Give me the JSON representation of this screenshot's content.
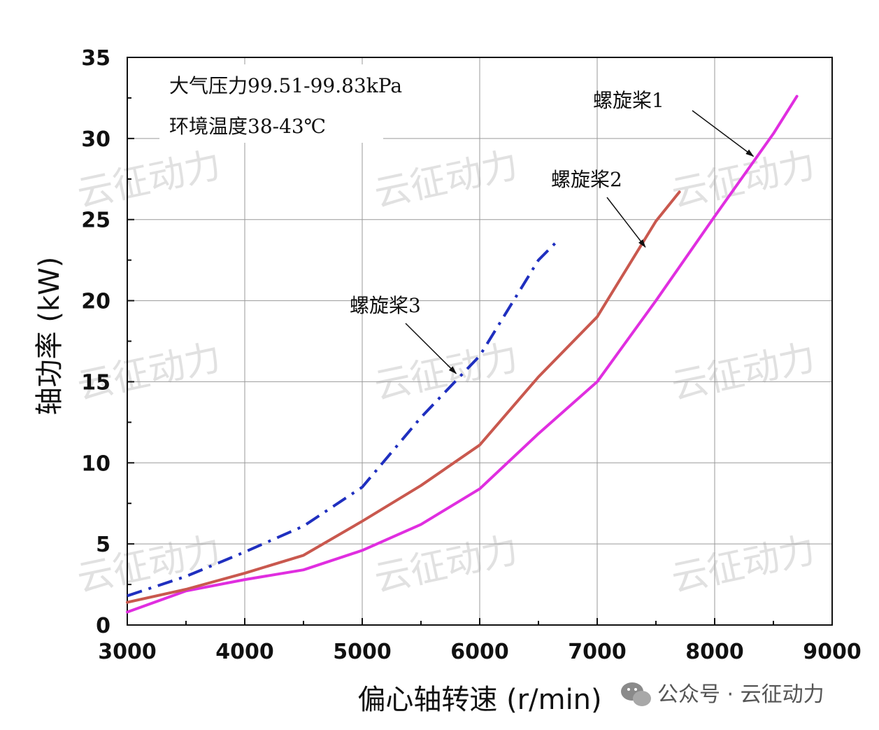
{
  "chart_data": {
    "type": "line",
    "xlabel": "偏心轴转速 (r/min)",
    "ylabel": "轴功率 (kW)",
    "xlim": [
      3000,
      9000
    ],
    "ylim": [
      0,
      35
    ],
    "xticks": [
      3000,
      4000,
      5000,
      6000,
      7000,
      8000,
      9000
    ],
    "yticks": [
      0,
      5,
      10,
      15,
      20,
      25,
      30,
      35
    ],
    "grid": true,
    "annotations": [
      "大气压力99.51-99.83kPa",
      "环境温度38-43℃"
    ],
    "series": [
      {
        "name": "螺旋桨1",
        "color": "#e02ee0",
        "style": "solid",
        "x": [
          3000,
          3500,
          4000,
          4500,
          5000,
          5500,
          6000,
          6500,
          7000,
          7500,
          8000,
          8500,
          8700
        ],
        "y": [
          0.8,
          2.1,
          2.8,
          3.4,
          4.6,
          6.2,
          8.4,
          11.8,
          15.0,
          20.0,
          25.2,
          30.3,
          32.6
        ]
      },
      {
        "name": "螺旋桨2",
        "color": "#c9584e",
        "style": "solid",
        "x": [
          3000,
          3500,
          4000,
          4500,
          5000,
          5500,
          6000,
          6500,
          7000,
          7500,
          7700
        ],
        "y": [
          1.4,
          2.2,
          3.2,
          4.3,
          6.4,
          8.6,
          11.1,
          15.3,
          19.0,
          24.9,
          26.7
        ]
      },
      {
        "name": "螺旋桨3",
        "color": "#1f2fbf",
        "style": "dashdot",
        "x": [
          3000,
          3500,
          4000,
          4500,
          5000,
          5500,
          6000,
          6500,
          6650
        ],
        "y": [
          1.8,
          3.0,
          4.5,
          6.1,
          8.5,
          12.8,
          16.6,
          22.5,
          23.6
        ]
      }
    ]
  },
  "watermark": "云征动力",
  "footer": {
    "icon": "wechat-icon",
    "text": "公众号 · 云征动力"
  }
}
